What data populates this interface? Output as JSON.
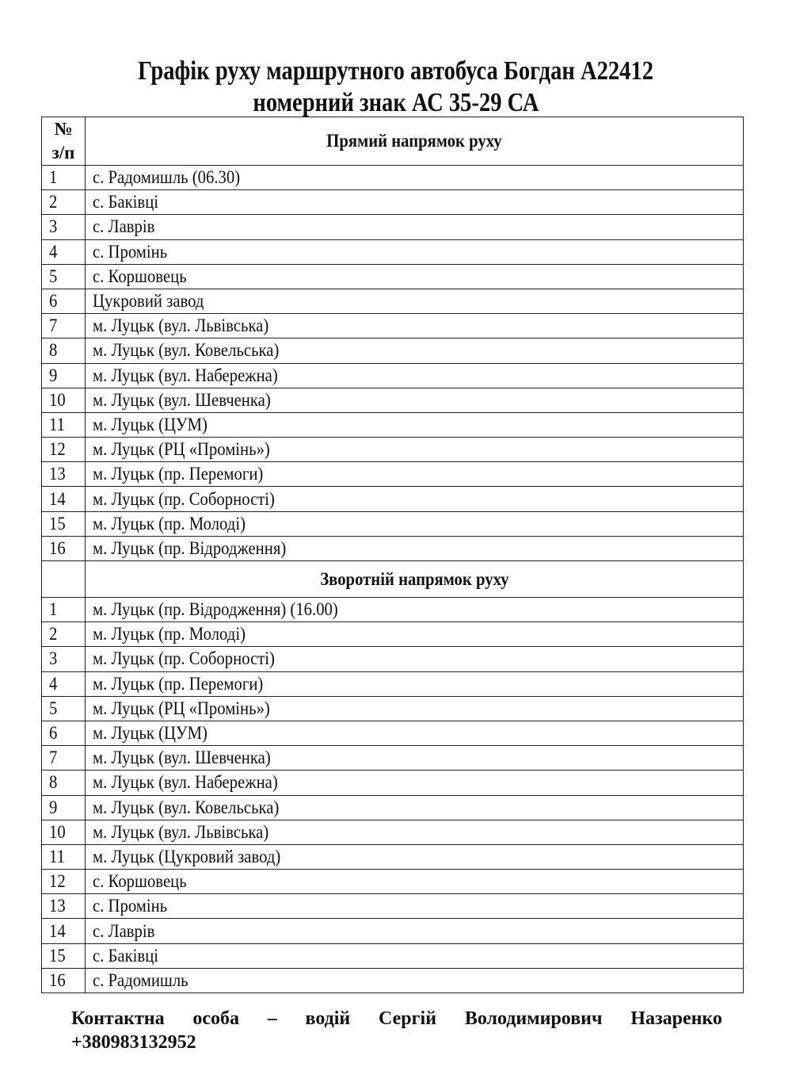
{
  "title": {
    "line1": "Графік руху маршрутного автобуса Богдан А22412",
    "line2": "номерний знак АС 35-29 СА"
  },
  "table": {
    "num_header_line1": "№",
    "num_header_line2": "з/п",
    "forward_header": "Прямий напрямок руху",
    "forward": [
      {
        "n": "1",
        "stop": "с. Радомишль   (06.30)"
      },
      {
        "n": "2",
        "stop": "с. Баківці"
      },
      {
        "n": "3",
        "stop": "с. Лаврів"
      },
      {
        "n": "4",
        "stop": "с. Промінь"
      },
      {
        "n": "5",
        "stop": "с. Коршовець"
      },
      {
        "n": "6",
        "stop": "Цукровий завод"
      },
      {
        "n": "7",
        "stop": "м. Луцьк (вул. Львівська)"
      },
      {
        "n": "8",
        "stop": "м. Луцьк (вул. Ковельська)"
      },
      {
        "n": "9",
        "stop": "м. Луцьк (вул. Набережна)"
      },
      {
        "n": "10",
        "stop": "м. Луцьк (вул. Шевченка)"
      },
      {
        "n": "11",
        "stop": "м. Луцьк (ЦУМ)"
      },
      {
        "n": "12",
        "stop": "м. Луцьк (РЦ «Промінь»)"
      },
      {
        "n": "13",
        "stop": "м. Луцьк (пр. Перемоги)"
      },
      {
        "n": "14",
        "stop": "м. Луцьк (пр. Соборності)"
      },
      {
        "n": "15",
        "stop": "м. Луцьк (пр. Молоді)"
      },
      {
        "n": "16",
        "stop": "м. Луцьк (пр. Відродження)"
      }
    ],
    "return_header": "Зворотній напрямок руху",
    "return": [
      {
        "n": "1",
        "stop": "м. Луцьк (пр. Відродження)   (16.00)"
      },
      {
        "n": "2",
        "stop": "м. Луцьк (пр. Молоді)"
      },
      {
        "n": "3",
        "stop": "м. Луцьк (пр. Соборності)"
      },
      {
        "n": "4",
        "stop": "м. Луцьк (пр. Перемоги)"
      },
      {
        "n": "5",
        "stop": "м. Луцьк (РЦ «Промінь»)"
      },
      {
        "n": "6",
        "stop": "м. Луцьк (ЦУМ)"
      },
      {
        "n": "7",
        "stop": "м. Луцьк (вул. Шевченка)"
      },
      {
        "n": "8",
        "stop": "м. Луцьк (вул. Набережна)"
      },
      {
        "n": "9",
        "stop": "м. Луцьк (вул. Ковельська)"
      },
      {
        "n": "10",
        "stop": "м. Луцьк (вул. Львівська)"
      },
      {
        "n": "11",
        "stop": "м. Луцьк (Цукровий завод)"
      },
      {
        "n": "12",
        "stop": "с. Коршовець"
      },
      {
        "n": "13",
        "stop": "с. Промінь"
      },
      {
        "n": "14",
        "stop": "с. Лаврів"
      },
      {
        "n": "15",
        "stop": "с. Баківці"
      },
      {
        "n": "16",
        "stop": "с. Радомишль"
      }
    ]
  },
  "footer": {
    "contact_words": [
      "Контактна",
      "особа",
      "–",
      "водій",
      "Сергій",
      "Володимирович",
      "Назаренко"
    ],
    "phone": "+380983132952"
  }
}
